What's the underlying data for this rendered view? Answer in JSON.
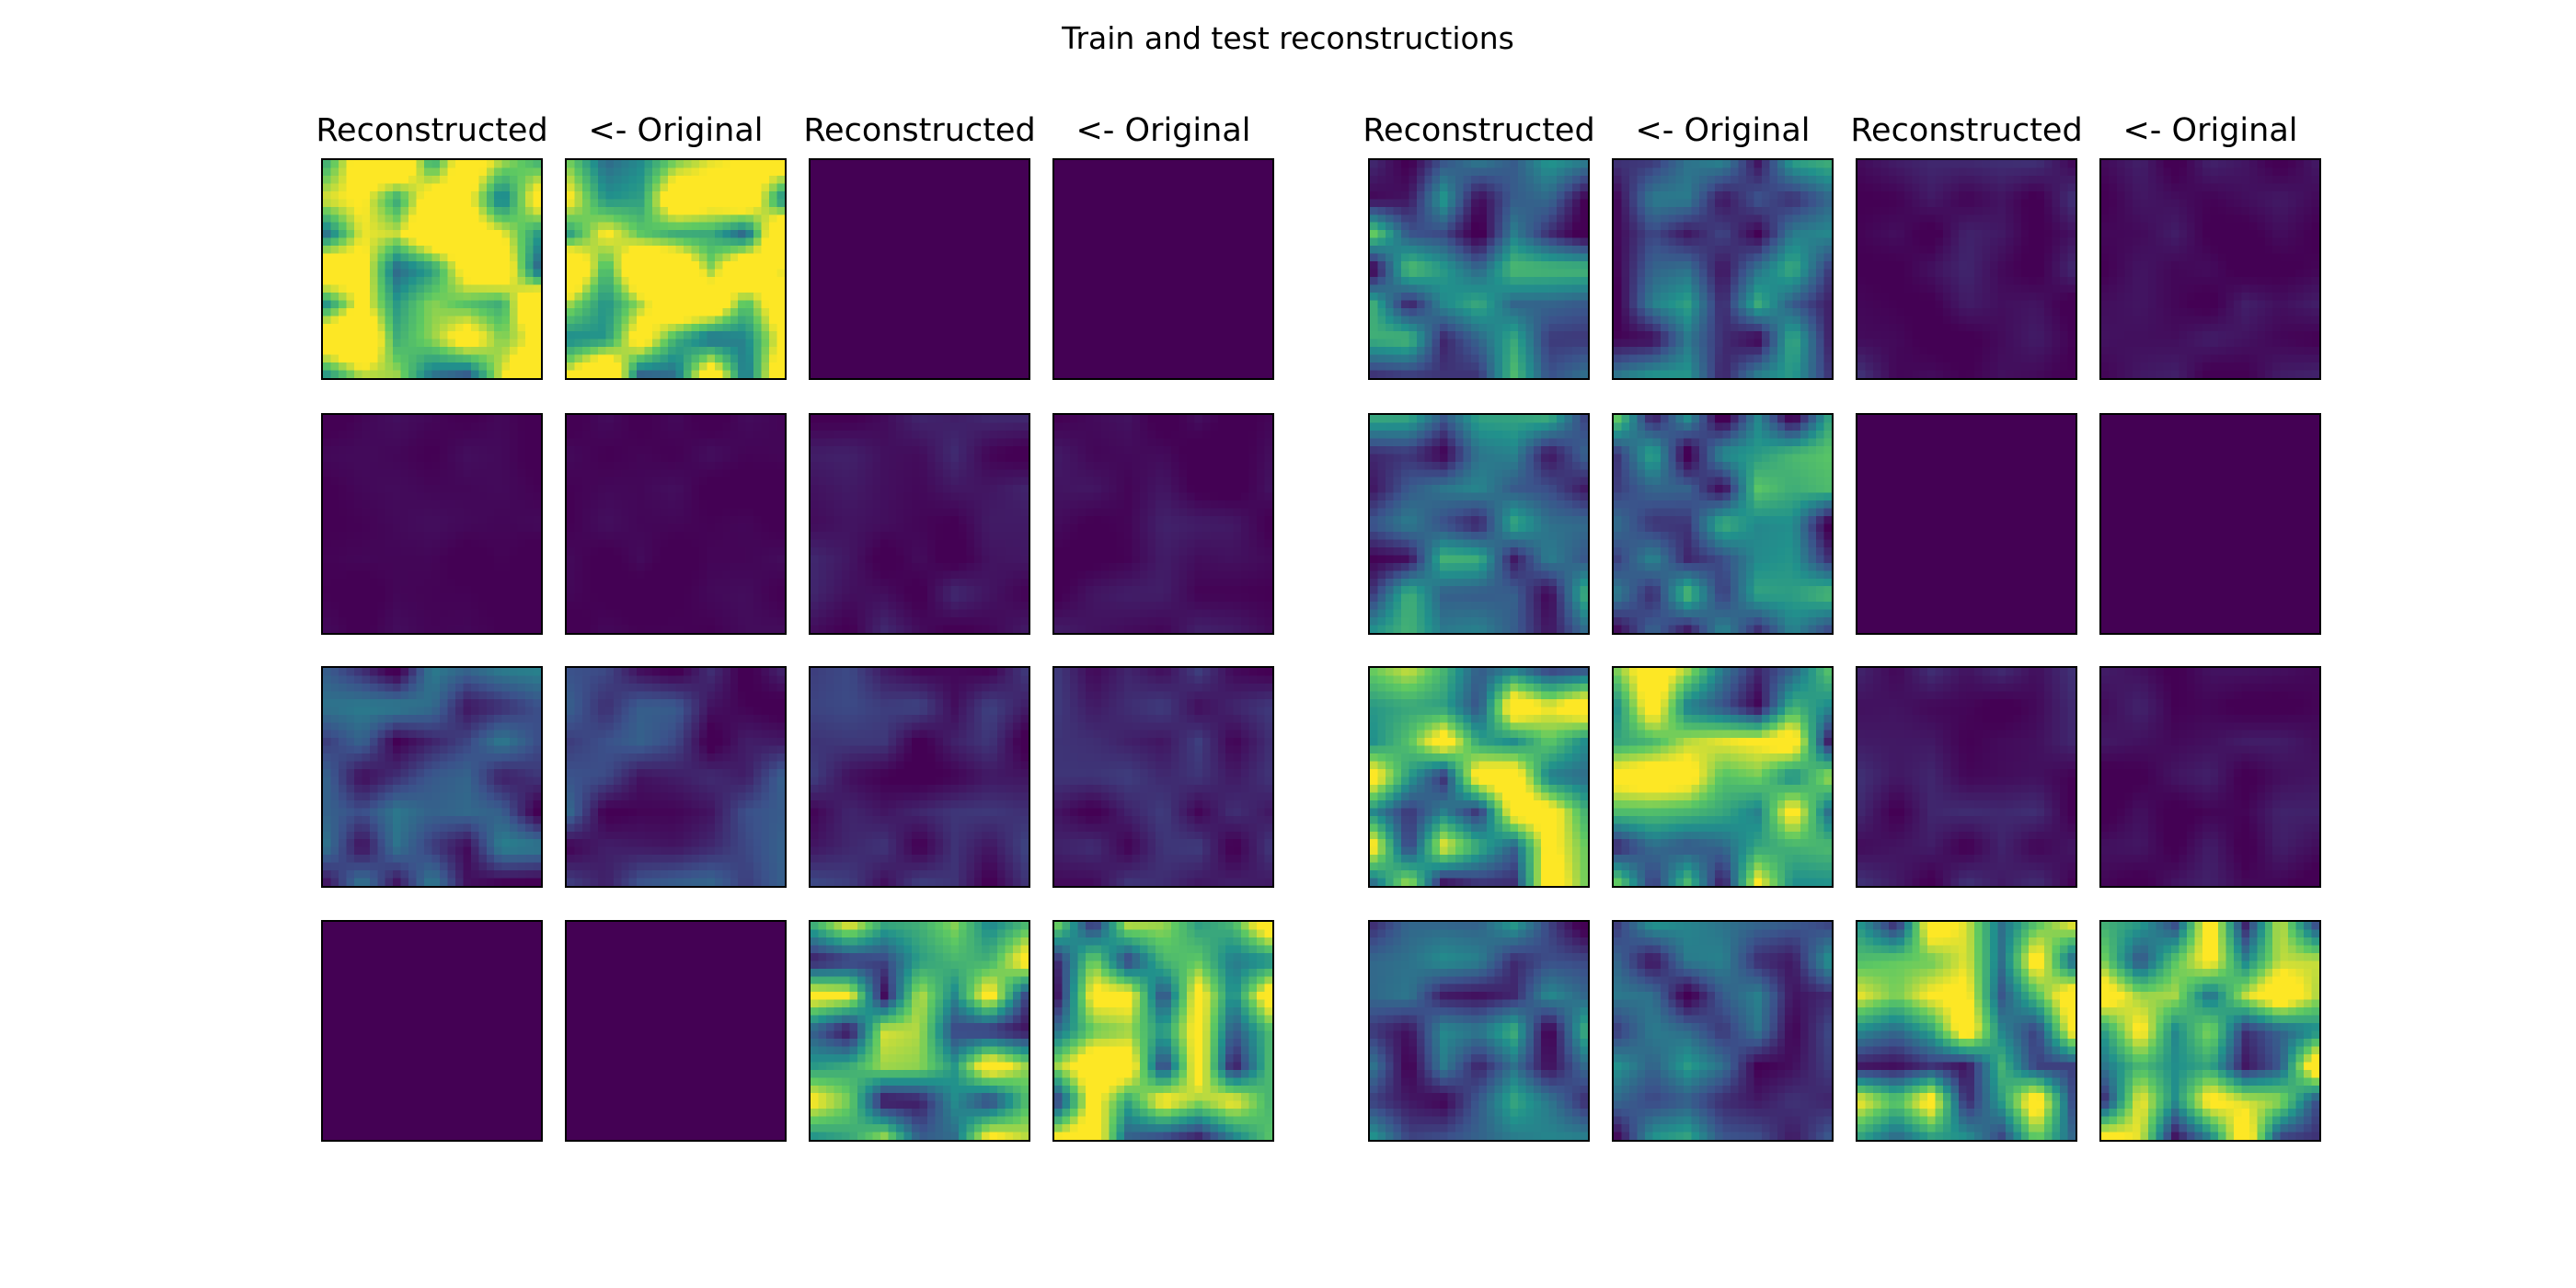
{
  "title": "Train and test reconstructions",
  "chart_data": {
    "type": "heatmap",
    "title": "Train and test reconstructions",
    "colormap": "viridis",
    "colormap_stops": [
      "#440154",
      "#3b528b",
      "#21918c",
      "#5ec962",
      "#fde725"
    ],
    "value_range": [
      0,
      1
    ],
    "grid": false,
    "panels": [
      {
        "column_titles": [
          "Reconstructed",
          "<- Original",
          "Reconstructed",
          "<- Original"
        ],
        "rows": [
          [
            {
              "level": 0.88
            },
            {
              "level": 0.92
            },
            {
              "level": 0.0
            },
            {
              "level": 0.0
            }
          ],
          [
            {
              "level": 0.01
            },
            {
              "level": 0.01
            },
            {
              "level": 0.05
            },
            {
              "level": 0.04
            }
          ],
          [
            {
              "level": 0.2
            },
            {
              "level": 0.15
            },
            {
              "level": 0.1
            },
            {
              "level": 0.08
            }
          ],
          [
            {
              "level": 0.0
            },
            {
              "level": 0.0
            },
            {
              "level": 0.6
            },
            {
              "level": 0.65
            }
          ]
        ]
      },
      {
        "column_titles": [
          "Reconstructed",
          "<- Original",
          "Reconstructed",
          "<- Original"
        ],
        "rows": [
          [
            {
              "level": 0.35
            },
            {
              "level": 0.3
            },
            {
              "level": 0.06
            },
            {
              "level": 0.04
            }
          ],
          [
            {
              "level": 0.3
            },
            {
              "level": 0.35
            },
            {
              "level": 0.0
            },
            {
              "level": 0.0
            }
          ],
          [
            {
              "level": 0.65
            },
            {
              "level": 0.6
            },
            {
              "level": 0.06
            },
            {
              "level": 0.04
            }
          ],
          [
            {
              "level": 0.3
            },
            {
              "level": 0.28
            },
            {
              "level": 0.6
            },
            {
              "level": 0.65
            }
          ]
        ]
      }
    ]
  }
}
